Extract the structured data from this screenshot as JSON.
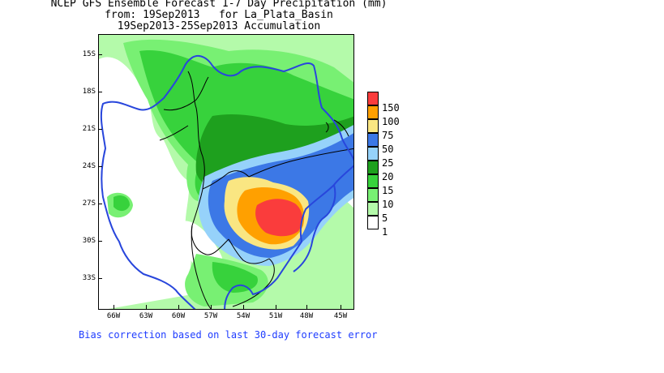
{
  "title": {
    "line1": "NCEP GFS Ensemble Forecast 1-7 Day Precipitation (mm)",
    "line2": "from: 19Sep2013   for La_Plata_Basin",
    "line3": "19Sep2013-25Sep2013 Accumulation"
  },
  "axes": {
    "y_labels": [
      "15S",
      "18S",
      "21S",
      "24S",
      "27S",
      "30S",
      "33S"
    ],
    "x_labels": [
      "66W",
      "63W",
      "60W",
      "57W",
      "54W",
      "51W",
      "48W",
      "45W"
    ]
  },
  "legend": {
    "items": [
      {
        "label": "150",
        "color": "#fa3c3c"
      },
      {
        "label": "100",
        "color": "#ffa000"
      },
      {
        "label": "75",
        "color": "#fae682"
      },
      {
        "label": "50",
        "color": "#3c78e6"
      },
      {
        "label": "25",
        "color": "#96d2fa"
      },
      {
        "label": "20",
        "color": "#1ea01e"
      },
      {
        "label": "15",
        "color": "#37d23c"
      },
      {
        "label": "10",
        "color": "#78f073"
      },
      {
        "label": "5",
        "color": "#b4faaa"
      },
      {
        "label": "1",
        "color": "#ffffff"
      }
    ]
  },
  "colors": {
    "basin_outline": "#2846dc",
    "borders": "#000000",
    "footnote": "#1e3cff"
  },
  "footnote": "Bias correction based on last 30-day forecast error"
}
